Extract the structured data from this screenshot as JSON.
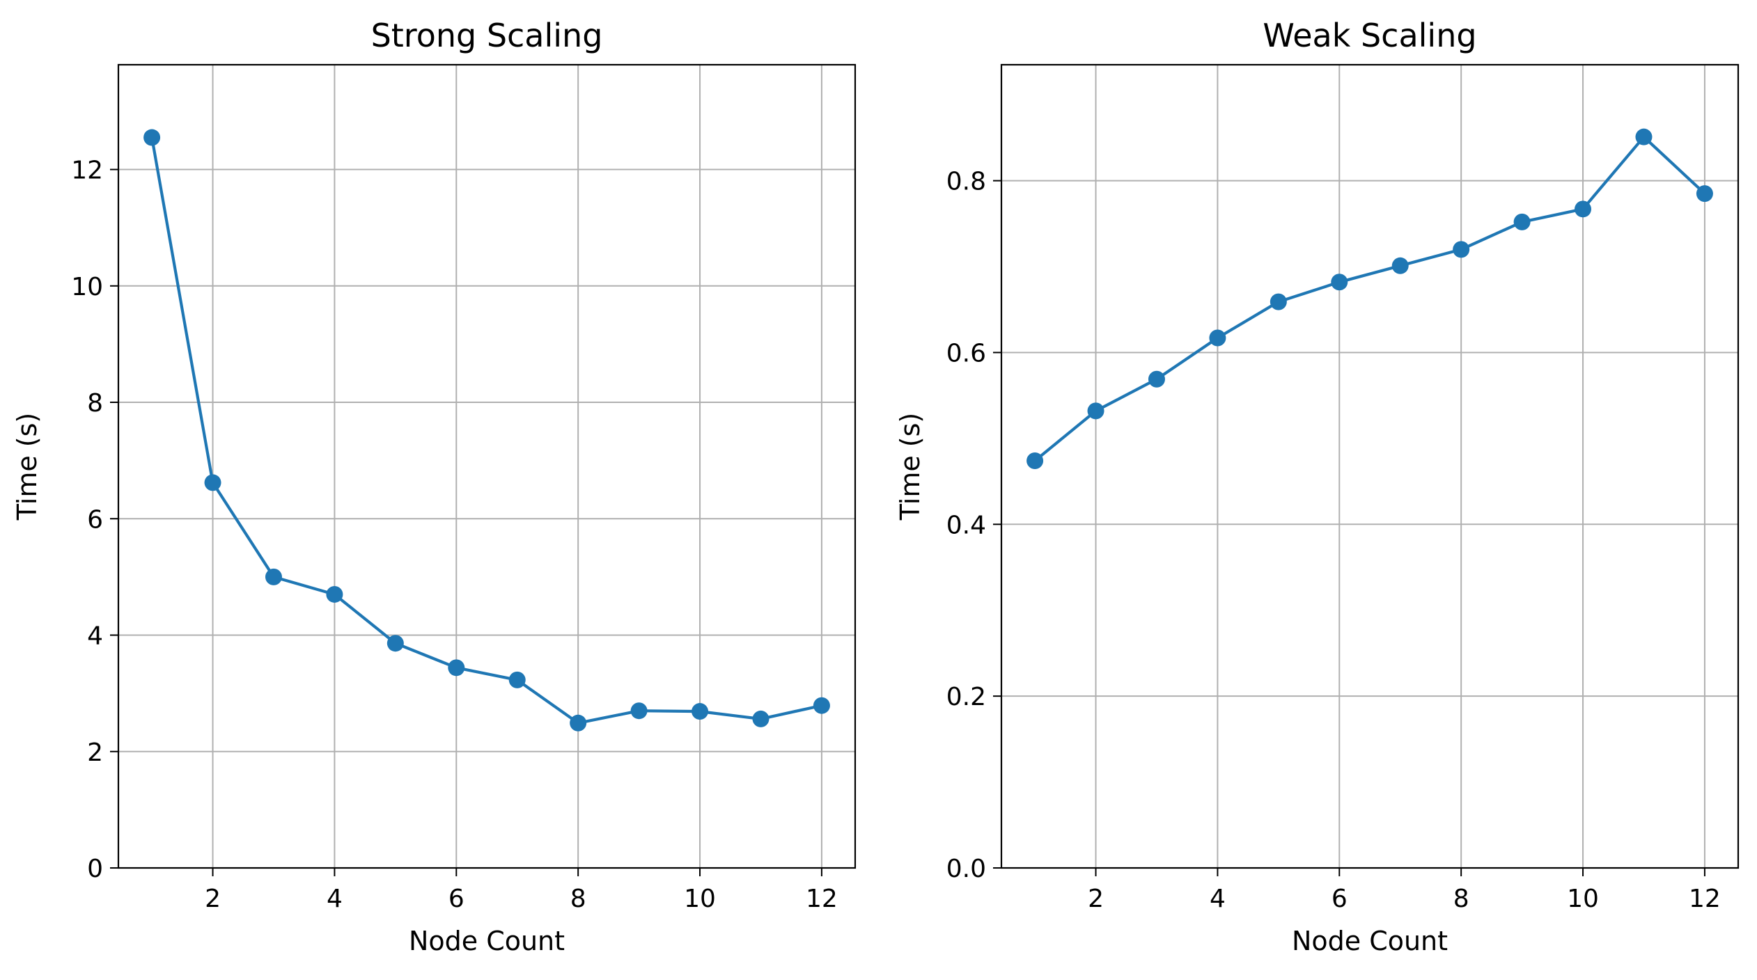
{
  "chart_data": [
    {
      "type": "line",
      "title": "Strong Scaling",
      "xlabel": "Node Count",
      "ylabel": "Time (s)",
      "xlim": [
        0.45,
        12.55
      ],
      "ylim": [
        0,
        13.8
      ],
      "xticks": [
        2,
        4,
        6,
        8,
        10,
        12
      ],
      "xtick_labels": [
        "2",
        "4",
        "6",
        "8",
        "10",
        "12"
      ],
      "yticks": [
        0,
        2,
        4,
        6,
        8,
        10,
        12
      ],
      "ytick_labels": [
        "0",
        "2",
        "4",
        "6",
        "8",
        "10",
        "12"
      ],
      "grid": true,
      "color": "#1f77b4",
      "marker": "circle",
      "series": [
        {
          "x": [
            1,
            2,
            3,
            4,
            5,
            6,
            7,
            8,
            9,
            10,
            11,
            12
          ],
          "values": [
            12.55,
            6.62,
            5.0,
            4.7,
            3.86,
            3.44,
            3.23,
            2.49,
            2.7,
            2.69,
            2.56,
            2.79
          ]
        }
      ]
    },
    {
      "type": "line",
      "title": "Weak Scaling",
      "xlabel": "Node Count",
      "ylabel": "Time (s)",
      "xlim": [
        0.45,
        12.55
      ],
      "ylim": [
        0,
        0.935
      ],
      "xticks": [
        2,
        4,
        6,
        8,
        10,
        12
      ],
      "xtick_labels": [
        "2",
        "4",
        "6",
        "8",
        "10",
        "12"
      ],
      "yticks": [
        0.0,
        0.2,
        0.4,
        0.6,
        0.8
      ],
      "ytick_labels": [
        "0.0",
        "0.2",
        "0.4",
        "0.6",
        "0.8"
      ],
      "grid": true,
      "color": "#1f77b4",
      "marker": "circle",
      "series": [
        {
          "x": [
            1,
            2,
            3,
            4,
            5,
            6,
            7,
            8,
            9,
            10,
            11,
            12
          ],
          "values": [
            0.474,
            0.532,
            0.569,
            0.617,
            0.659,
            0.682,
            0.701,
            0.72,
            0.752,
            0.767,
            0.851,
            0.785
          ]
        }
      ]
    }
  ]
}
